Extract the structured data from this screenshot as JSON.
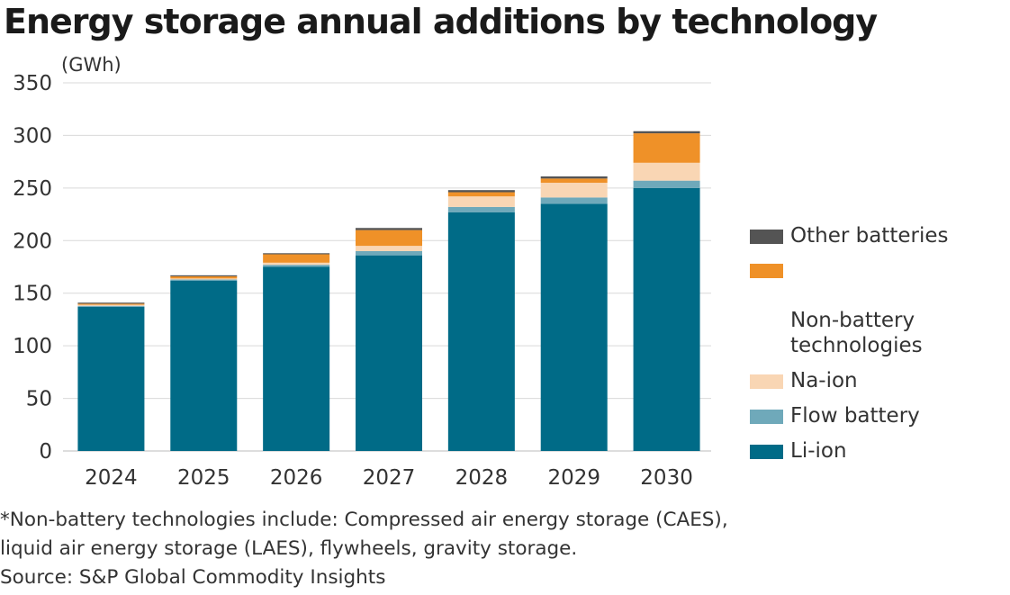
{
  "chart_data": {
    "type": "bar",
    "stacked": true,
    "title": "Energy storage annual additions by technology",
    "ylabel": "(GWh)",
    "xlabel": "",
    "ylim": [
      0,
      350
    ],
    "yticks": [
      0,
      50,
      100,
      150,
      200,
      250,
      300,
      350
    ],
    "grid": true,
    "legend_position": "right",
    "categories": [
      "2024",
      "2025",
      "2026",
      "2027",
      "2028",
      "2029",
      "2030"
    ],
    "series": [
      {
        "name": "Li-ion",
        "color": "#006b87",
        "values": [
          137,
          162,
          175,
          186,
          227,
          235,
          250
        ]
      },
      {
        "name": "Flow battery",
        "color": "#6fa9ba",
        "values": [
          1,
          1,
          2,
          4,
          5,
          6,
          7
        ]
      },
      {
        "name": "Na-ion",
        "color": "#f9d6b4",
        "values": [
          1,
          1,
          2,
          5,
          10,
          14,
          17
        ]
      },
      {
        "name": "Non-battery technologies",
        "color": "#ef9128",
        "values": [
          1,
          2,
          8,
          15,
          4,
          4,
          28
        ]
      },
      {
        "name": "Other batteries",
        "color": "#545454",
        "values": [
          1,
          1,
          1,
          2,
          2,
          2,
          2
        ]
      }
    ],
    "legend_order": [
      "Other batteries",
      "Non-battery technologies",
      "Na-ion",
      "Flow battery",
      "Li-ion"
    ]
  },
  "legend": {
    "items": [
      {
        "label": "Other batteries",
        "color": "#545454"
      },
      {
        "label": "Non-battery\ntechnologies",
        "color": "#ef9128"
      },
      {
        "label": "Na-ion",
        "color": "#f9d6b4"
      },
      {
        "label": "Flow battery",
        "color": "#6fa9ba"
      },
      {
        "label": "Li-ion",
        "color": "#006b87"
      }
    ]
  },
  "footnotes": {
    "line1": "*Non-battery technologies include: Compressed air energy storage (CAES),",
    "line2": "liquid air energy storage (LAES), flywheels, gravity storage.",
    "source": "Source: S&P Global Commodity Insights"
  }
}
